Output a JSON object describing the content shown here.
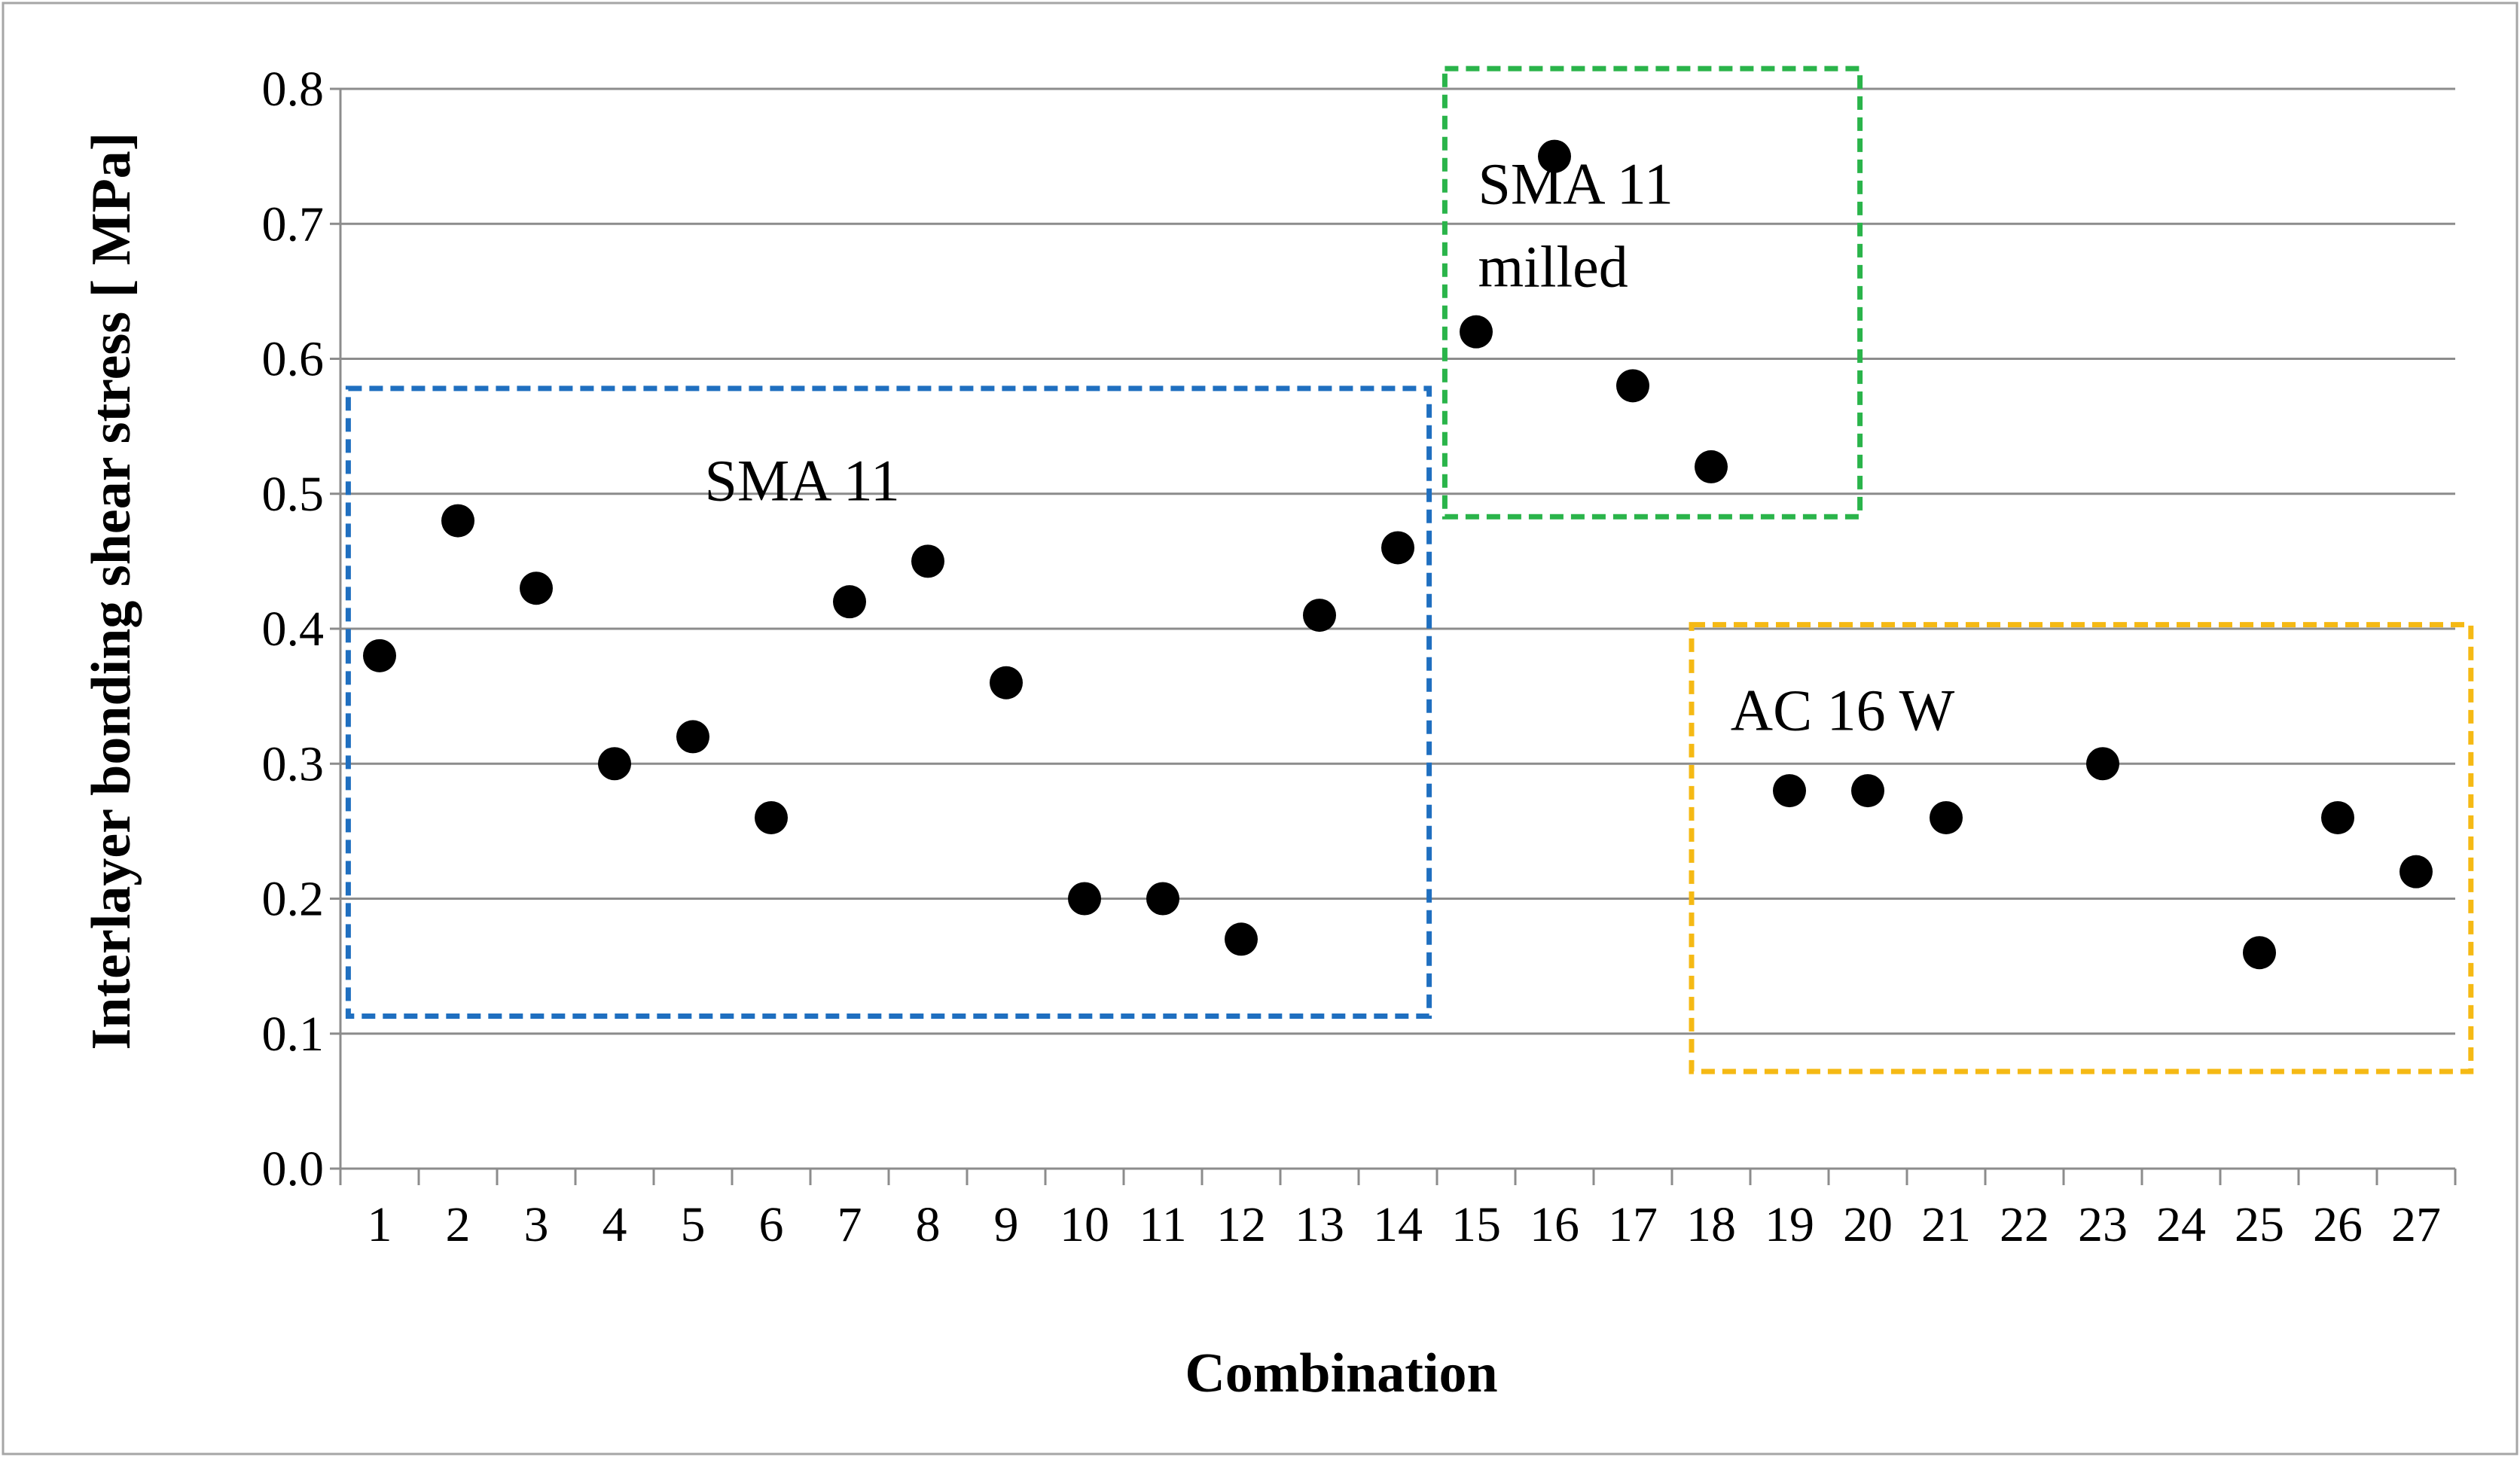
{
  "chart_data": {
    "type": "scatter",
    "title": "",
    "xlabel": "Combination",
    "ylabel": "Interlayer bonding shear stress [ MPa]",
    "ylim": [
      0.0,
      0.8
    ],
    "yticks": [
      "0.0",
      "0.1",
      "0.2",
      "0.3",
      "0.4",
      "0.5",
      "0.6",
      "0.7",
      "0.8"
    ],
    "categories": [
      "1",
      "2",
      "3",
      "4",
      "5",
      "6",
      "7",
      "8",
      "9",
      "10",
      "11",
      "12",
      "13",
      "14",
      "15",
      "16",
      "17",
      "18",
      "19",
      "20",
      "21",
      "22",
      "23",
      "24",
      "25",
      "26",
      "27"
    ],
    "grid": "horizontal",
    "marker_color": "#000000",
    "series": [
      {
        "name": "Interlayer bonding shear stress",
        "values": [
          0.38,
          0.48,
          0.43,
          0.3,
          0.32,
          0.26,
          0.42,
          0.45,
          0.36,
          0.2,
          0.2,
          0.17,
          0.41,
          0.46,
          0.62,
          0.75,
          0.58,
          0.52,
          0.28,
          0.28,
          0.26,
          null,
          0.3,
          null,
          0.16,
          0.26,
          0.22
        ]
      }
    ],
    "annotations": [
      {
        "id": "sma11",
        "lines": [
          "SMA 11"
        ],
        "color": "#1f6fc0",
        "x_range": [
          0.6,
          14.4
        ],
        "y_range": [
          0.113,
          0.578
        ]
      },
      {
        "id": "sma11-milled",
        "lines": [
          "SMA 11",
          "milled"
        ],
        "color": "#2ab44a",
        "x_range": [
          14.6,
          19.9
        ],
        "y_range": [
          0.483,
          0.815
        ]
      },
      {
        "id": "ac16w",
        "lines": [
          "AC 16 W"
        ],
        "color": "#f5b914",
        "x_range": [
          17.75,
          27.7
        ],
        "y_range": [
          0.072,
          0.403
        ]
      }
    ]
  }
}
